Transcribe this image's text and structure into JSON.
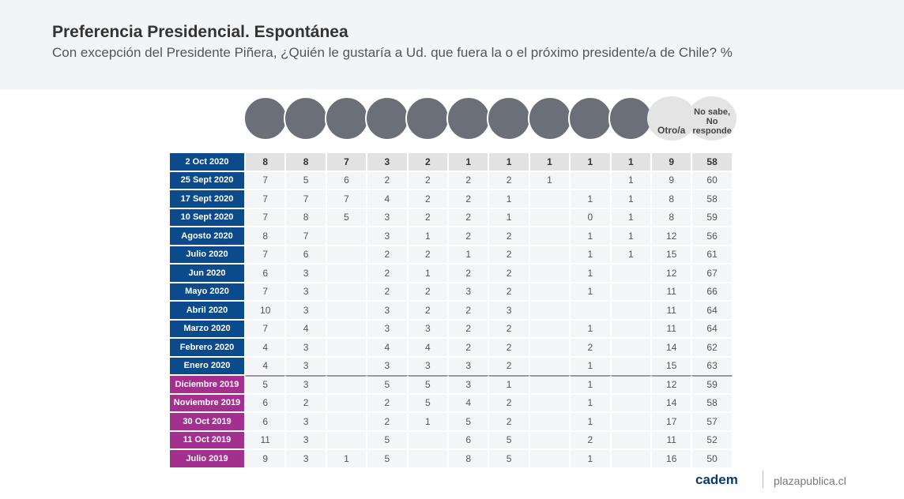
{
  "header": {
    "title": "Preferencia Presidencial. Espontánea",
    "subtitle": "Con excepción del Presidente Piñera, ¿Quién le gustaría a Ud. que fuera la o el próximo presidente/a de Chile? %"
  },
  "table": {
    "columns": [
      null,
      null,
      null,
      null,
      null,
      null,
      null,
      null,
      null,
      null,
      "Otro/a",
      [
        "No sabe,",
        "No responde"
      ]
    ],
    "rows": [
      {
        "label": "2 Oct 2020",
        "color": "#0b4a8b",
        "values": [
          8,
          8,
          7,
          3,
          2,
          1,
          1,
          1,
          1,
          1,
          9,
          58
        ]
      },
      {
        "label": "25 Sept 2020",
        "color": "#0b4a8b",
        "values": [
          7,
          5,
          6,
          2,
          2,
          2,
          2,
          1,
          null,
          1,
          9,
          60
        ]
      },
      {
        "label": "17 Sept 2020",
        "color": "#0b4a8b",
        "values": [
          7,
          7,
          7,
          4,
          2,
          2,
          1,
          null,
          1,
          1,
          8,
          58
        ]
      },
      {
        "label": "10 Sept 2020",
        "color": "#0b4a8b",
        "values": [
          7,
          8,
          5,
          3,
          2,
          2,
          1,
          null,
          0,
          1,
          8,
          59
        ]
      },
      {
        "label": "Agosto 2020",
        "color": "#0b4a8b",
        "values": [
          8,
          7,
          null,
          3,
          1,
          2,
          2,
          null,
          1,
          1,
          12,
          56
        ]
      },
      {
        "label": "Julio 2020",
        "color": "#0b4a8b",
        "values": [
          7,
          6,
          null,
          2,
          2,
          1,
          2,
          null,
          1,
          1,
          15,
          61
        ]
      },
      {
        "label": "Jun 2020",
        "color": "#0b4a8b",
        "values": [
          6,
          3,
          null,
          2,
          1,
          2,
          2,
          null,
          1,
          null,
          12,
          67
        ]
      },
      {
        "label": "Mayo 2020",
        "color": "#0b4a8b",
        "values": [
          7,
          3,
          null,
          2,
          2,
          3,
          2,
          null,
          1,
          null,
          11,
          66
        ]
      },
      {
        "label": "Abril 2020",
        "color": "#0b4a8b",
        "values": [
          10,
          3,
          null,
          3,
          2,
          2,
          3,
          null,
          null,
          null,
          11,
          64
        ]
      },
      {
        "label": "Marzo 2020",
        "color": "#0b4a8b",
        "values": [
          7,
          4,
          null,
          3,
          3,
          2,
          2,
          null,
          1,
          null,
          11,
          64
        ]
      },
      {
        "label": "Febrero 2020",
        "color": "#0b4a8b",
        "values": [
          4,
          3,
          null,
          4,
          4,
          2,
          2,
          null,
          2,
          null,
          14,
          62
        ]
      },
      {
        "label": "Enero 2020",
        "color": "#0b4a8b",
        "values": [
          4,
          3,
          null,
          3,
          3,
          3,
          2,
          null,
          1,
          null,
          15,
          63
        ]
      },
      {
        "label": "Diciembre 2019",
        "color": "#a3308e",
        "values": [
          5,
          3,
          null,
          5,
          5,
          3,
          1,
          null,
          1,
          null,
          12,
          59
        ]
      },
      {
        "label": "Noviembre 2019",
        "color": "#a3308e",
        "values": [
          6,
          2,
          null,
          2,
          5,
          4,
          2,
          null,
          1,
          null,
          14,
          58
        ]
      },
      {
        "label": "30 Oct 2019",
        "color": "#a3308e",
        "values": [
          6,
          3,
          null,
          2,
          1,
          5,
          2,
          null,
          1,
          null,
          17,
          57
        ]
      },
      {
        "label": "11 Oct 2019",
        "color": "#a3308e",
        "values": [
          11,
          3,
          null,
          5,
          null,
          6,
          5,
          null,
          2,
          null,
          11,
          52
        ]
      },
      {
        "label": "Julio 2019",
        "color": "#a3308e",
        "values": [
          9,
          3,
          1,
          5,
          null,
          8,
          5,
          null,
          1,
          null,
          16,
          50
        ]
      }
    ]
  },
  "footer": {
    "brand": "cadem",
    "site": "plazapublica.cl"
  }
}
